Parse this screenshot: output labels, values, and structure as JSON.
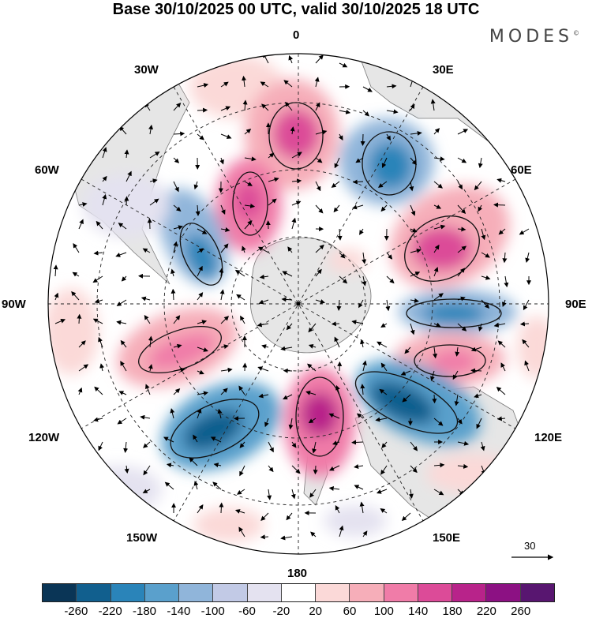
{
  "title": "Base 30/10/2025 00 UTC, valid 30/10/2025 18 UTC",
  "logo": "MODES",
  "logo_mark": "©",
  "longitude_labels": {
    "top": "0",
    "ne": "30E",
    "ene": "60E",
    "east": "90E",
    "ese": "120E",
    "sse": "150E",
    "bottom": "180",
    "ssw": "150W",
    "wsw": "120W",
    "west": "90W",
    "wnw": "60W",
    "nw": "30W"
  },
  "vector_reference": "30",
  "colorbar": {
    "colors": [
      "#0a3556",
      "#115f8e",
      "#2a84b9",
      "#5aa0cc",
      "#90b5da",
      "#c2cae6",
      "#e4e2f0",
      "#ffffff",
      "#fbd9d8",
      "#f6aeb9",
      "#f07ca8",
      "#dc4b98",
      "#b8238a",
      "#8c1183",
      "#581670"
    ],
    "labels": [
      "-260",
      "-220",
      "-180",
      "-140",
      "-100",
      "-60",
      "-20",
      "20",
      "60",
      "100",
      "140",
      "180",
      "220",
      "260"
    ]
  }
}
